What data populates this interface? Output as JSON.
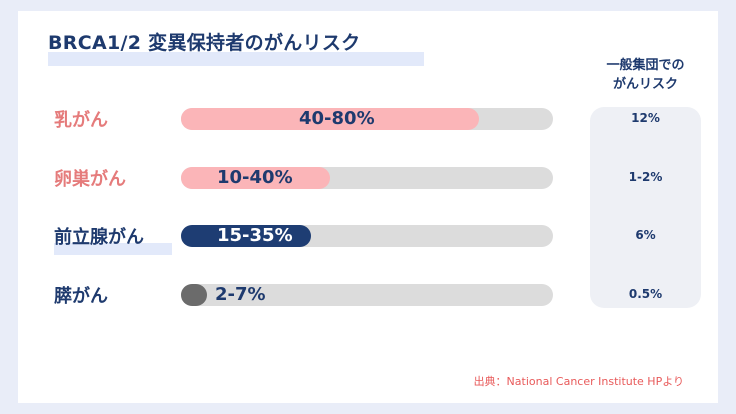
{
  "chart_data": {
    "type": "bar",
    "title": "BRCA1/2 変異保持者のがんリスク",
    "general_header": [
      "一般集団での",
      "がんリスク"
    ],
    "categories": [
      "乳がん",
      "卵巣がん",
      "前立腺がん",
      "膵がん"
    ],
    "series": [
      {
        "values": [
          80,
          40,
          35,
          7
        ],
        "value_labels": [
          "40-80%",
          "10-40%",
          "15-35%",
          "2-7%"
        ]
      }
    ],
    "general_risk": [
      "12%",
      "1-2%",
      "6%",
      "0.5%"
    ],
    "xlim": [
      0,
      100
    ],
    "colors": {
      "female_label": "#e57b7b",
      "male_label": "#1e3a6e",
      "female_fill": "#fbb5b8",
      "prostate_fill": "#1e3d73",
      "pancreas_fill": "#6b6b6b",
      "track": "#dcdcdc"
    },
    "source": "出典：National Cancer Institute HPより"
  }
}
